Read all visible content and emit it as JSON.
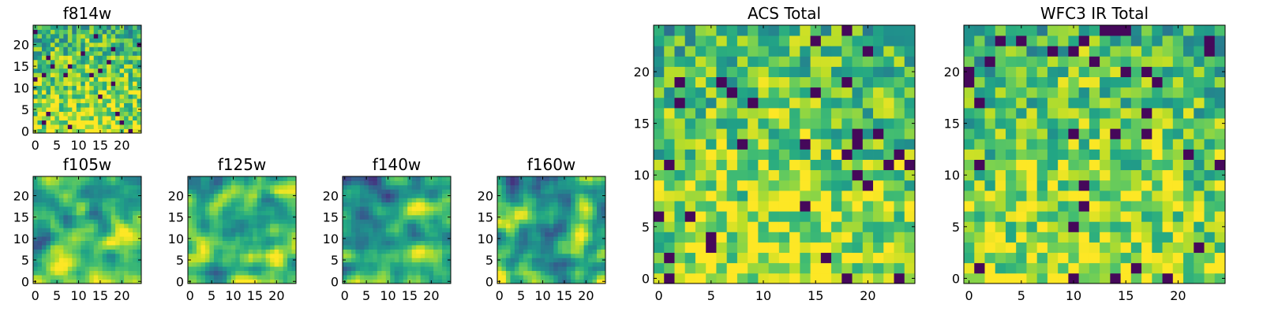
{
  "chart_data": [
    {
      "type": "heatmap",
      "title": "f814w",
      "grid_size": [
        25,
        25
      ],
      "xlim": [
        -0.5,
        24.5
      ],
      "ylim": [
        -0.5,
        24.5
      ],
      "xticks": [
        "0",
        "5",
        "10",
        "15",
        "20"
      ],
      "yticks": [
        "0",
        "5",
        "10",
        "15",
        "20"
      ],
      "colormap": "viridis",
      "pattern": "noisy",
      "seed": 814
    },
    {
      "type": "heatmap",
      "title": "f105w",
      "grid_size": [
        25,
        25
      ],
      "xlim": [
        -0.5,
        24.5
      ],
      "ylim": [
        -0.5,
        24.5
      ],
      "xticks": [
        "0",
        "5",
        "10",
        "15",
        "20"
      ],
      "yticks": [
        "0",
        "5",
        "10",
        "15",
        "20"
      ],
      "colormap": "viridis",
      "pattern": "smooth",
      "seed": 105
    },
    {
      "type": "heatmap",
      "title": "f125w",
      "grid_size": [
        25,
        25
      ],
      "xlim": [
        -0.5,
        24.5
      ],
      "ylim": [
        -0.5,
        24.5
      ],
      "xticks": [
        "0",
        "5",
        "10",
        "15",
        "20"
      ],
      "yticks": [
        "0",
        "5",
        "10",
        "15",
        "20"
      ],
      "colormap": "viridis",
      "pattern": "smooth",
      "seed": 125
    },
    {
      "type": "heatmap",
      "title": "f140w",
      "grid_size": [
        25,
        25
      ],
      "xlim": [
        -0.5,
        24.5
      ],
      "ylim": [
        -0.5,
        24.5
      ],
      "xticks": [
        "0",
        "5",
        "10",
        "15",
        "20"
      ],
      "yticks": [
        "0",
        "5",
        "10",
        "15",
        "20"
      ],
      "colormap": "viridis",
      "pattern": "smooth",
      "seed": 140
    },
    {
      "type": "heatmap",
      "title": "f160w",
      "grid_size": [
        25,
        25
      ],
      "xlim": [
        -0.5,
        24.5
      ],
      "ylim": [
        -0.5,
        24.5
      ],
      "xticks": [
        "0",
        "5",
        "10",
        "15",
        "20"
      ],
      "yticks": [
        "0",
        "5",
        "10",
        "15",
        "20"
      ],
      "colormap": "viridis",
      "pattern": "smooth",
      "seed": 160
    },
    {
      "type": "heatmap",
      "title": "ACS Total",
      "grid_size": [
        25,
        25
      ],
      "xlim": [
        -0.5,
        24.5
      ],
      "ylim": [
        -0.5,
        24.5
      ],
      "xticks": [
        "0",
        "5",
        "10",
        "15",
        "20"
      ],
      "yticks": [
        "0",
        "5",
        "10",
        "15",
        "20"
      ],
      "colormap": "viridis",
      "pattern": "noisy",
      "seed": 1000
    },
    {
      "type": "heatmap",
      "title": "WFC3 IR Total",
      "grid_size": [
        25,
        25
      ],
      "xlim": [
        -0.5,
        24.5
      ],
      "ylim": [
        -0.5,
        24.5
      ],
      "xticks": [
        "0",
        "5",
        "10",
        "15",
        "20"
      ],
      "yticks": [
        "0",
        "5",
        "10",
        "15",
        "20"
      ],
      "colormap": "viridis",
      "pattern": "noisy",
      "seed": 3000
    }
  ]
}
